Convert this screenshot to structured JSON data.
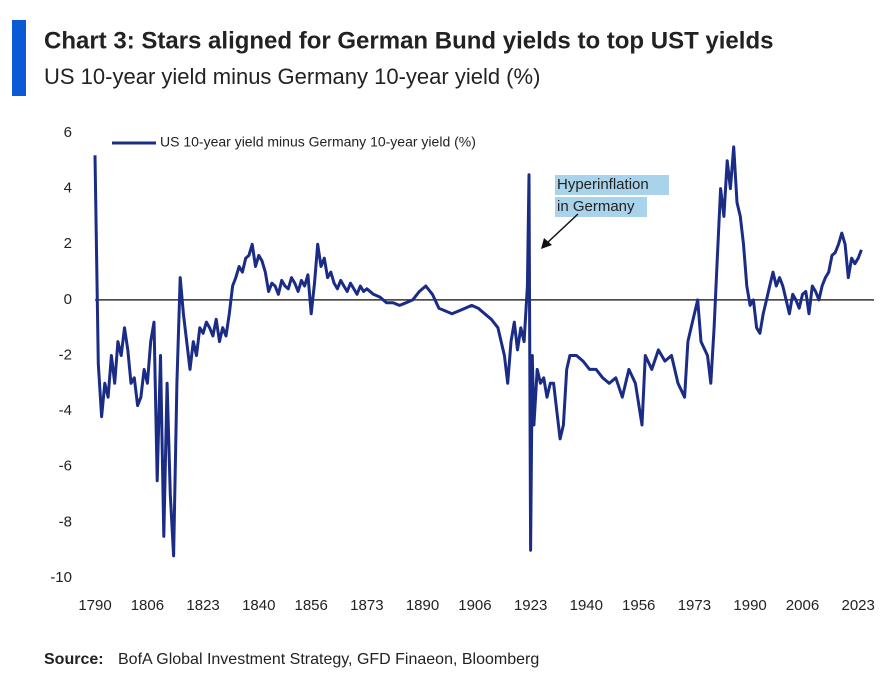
{
  "chart_data": {
    "type": "line",
    "title": "Chart 3: Stars aligned for German Bund yields to top UST yields",
    "subtitle": "US 10-year yield minus Germany 10-year yield (%)",
    "x": [
      1790,
      1791,
      1792,
      1793,
      1794,
      1795,
      1796,
      1797,
      1798,
      1799,
      1800,
      1801,
      1802,
      1803,
      1804,
      1805,
      1806,
      1807,
      1808,
      1809,
      1810,
      1811,
      1812,
      1813,
      1814,
      1815,
      1816,
      1817,
      1818,
      1819,
      1820,
      1821,
      1822,
      1823,
      1824,
      1825,
      1826,
      1827,
      1828,
      1829,
      1830,
      1831,
      1832,
      1833,
      1834,
      1835,
      1836,
      1837,
      1838,
      1839,
      1840,
      1841,
      1842,
      1843,
      1844,
      1845,
      1846,
      1847,
      1848,
      1849,
      1850,
      1851,
      1852,
      1853,
      1854,
      1855,
      1856,
      1857,
      1858,
      1859,
      1860,
      1861,
      1862,
      1863,
      1864,
      1865,
      1866,
      1867,
      1868,
      1869,
      1870,
      1871,
      1872,
      1873,
      1875,
      1877,
      1879,
      1881,
      1883,
      1885,
      1887,
      1889,
      1891,
      1893,
      1895,
      1897,
      1899,
      1901,
      1903,
      1905,
      1907,
      1909,
      1911,
      1913,
      1915,
      1916,
      1917,
      1918,
      1919,
      1920,
      1921,
      1922,
      1922.5,
      1923,
      1923.5,
      1924,
      1925,
      1926,
      1927,
      1928,
      1929,
      1930,
      1931,
      1932,
      1933,
      1934,
      1935,
      1937,
      1939,
      1941,
      1943,
      1945,
      1947,
      1949,
      1951,
      1953,
      1955,
      1957,
      1958,
      1960,
      1962,
      1964,
      1966,
      1968,
      1970,
      1971,
      1972,
      1974,
      1975,
      1977,
      1978,
      1979,
      1980,
      1981,
      1982,
      1983,
      1984,
      1985,
      1986,
      1987,
      1988,
      1989,
      1990,
      1991,
      1992,
      1993,
      1994,
      1995,
      1996,
      1997,
      1998,
      1999,
      2000,
      2001,
      2002,
      2003,
      2004,
      2005,
      2006,
      2007,
      2008,
      2009,
      2010,
      2011,
      2012,
      2013,
      2014,
      2015,
      2016,
      2017,
      2018,
      2019,
      2020,
      2021,
      2022,
      2023,
      2024
    ],
    "series": [
      {
        "name": "US 10-year yield minus Germany 10-year yield (%)",
        "color": "#1b2c86",
        "values": [
          5.2,
          -2.3,
          -4.2,
          -3.0,
          -3.5,
          -2.0,
          -3.0,
          -1.5,
          -2.0,
          -1.0,
          -1.8,
          -3.0,
          -2.8,
          -3.8,
          -3.5,
          -2.5,
          -3.0,
          -1.5,
          -0.8,
          -6.5,
          -2.0,
          -8.5,
          -3.0,
          -7.0,
          -9.2,
          -3.0,
          0.8,
          -0.5,
          -1.5,
          -2.5,
          -1.5,
          -2.0,
          -1.0,
          -1.2,
          -0.8,
          -1.0,
          -1.3,
          -0.7,
          -1.5,
          -1.0,
          -1.3,
          -0.5,
          0.5,
          0.8,
          1.2,
          1.0,
          1.5,
          1.6,
          2.0,
          1.2,
          1.6,
          1.4,
          1.0,
          0.3,
          0.6,
          0.5,
          0.2,
          0.7,
          0.5,
          0.4,
          0.8,
          0.6,
          0.3,
          0.7,
          0.5,
          0.9,
          -0.5,
          0.6,
          2.0,
          1.2,
          1.5,
          0.8,
          1.0,
          0.6,
          0.4,
          0.7,
          0.5,
          0.3,
          0.6,
          0.4,
          0.2,
          0.5,
          0.3,
          0.4,
          0.2,
          0.1,
          -0.1,
          -0.1,
          -0.2,
          -0.1,
          0.0,
          0.3,
          0.5,
          0.2,
          -0.3,
          -0.4,
          -0.5,
          -0.4,
          -0.3,
          -0.2,
          -0.3,
          -0.5,
          -0.7,
          -1.0,
          -2.0,
          -3.0,
          -1.5,
          -0.8,
          -1.8,
          -1.0,
          -1.5,
          0.5,
          4.5,
          -9.0,
          -2.0,
          -4.5,
          -2.5,
          -3.0,
          -2.8,
          -3.5,
          -3.0,
          -3.0,
          -4.0,
          -5.0,
          -4.5,
          -2.5,
          -2.0,
          -2.0,
          -2.2,
          -2.5,
          -2.5,
          -2.8,
          -3.0,
          -2.8,
          -3.5,
          -2.5,
          -3.0,
          -4.5,
          -2.0,
          -2.5,
          -1.8,
          -2.2,
          -2.0,
          -3.0,
          -3.5,
          -1.5,
          -1.0,
          0.0,
          -1.5,
          -2.0,
          -3.0,
          -1.0,
          1.5,
          4.0,
          3.0,
          5.0,
          4.0,
          5.5,
          3.5,
          3.0,
          2.0,
          0.5,
          -0.2,
          0.0,
          -1.0,
          -1.2,
          -0.5,
          0.0,
          0.5,
          1.0,
          0.5,
          0.8,
          0.5,
          0.0,
          -0.5,
          0.2,
          0.0,
          -0.3,
          0.2,
          0.3,
          -0.5,
          0.5,
          0.3,
          0.0,
          0.5,
          0.8,
          1.0,
          1.6,
          1.7,
          2.0,
          2.4,
          2.0,
          0.8,
          1.5,
          1.3,
          1.5,
          1.8
        ]
      }
    ],
    "xlim": [
      1790,
      2026
    ],
    "xticks": [
      1790,
      1806,
      1823,
      1840,
      1856,
      1873,
      1890,
      1906,
      1923,
      1940,
      1956,
      1973,
      1990,
      2006,
      2023
    ],
    "ylim": [
      -10,
      6
    ],
    "yticks": [
      -10,
      -8,
      -6,
      -4,
      -2,
      0,
      2,
      4,
      6
    ],
    "reference_line": 0,
    "legend": "top-left",
    "annotation": [
      "Hyperinflation",
      "in Germany"
    ],
    "source_label": "Source:",
    "source": "BofA Global Investment Strategy, GFD Finaeon, Bloomberg"
  }
}
